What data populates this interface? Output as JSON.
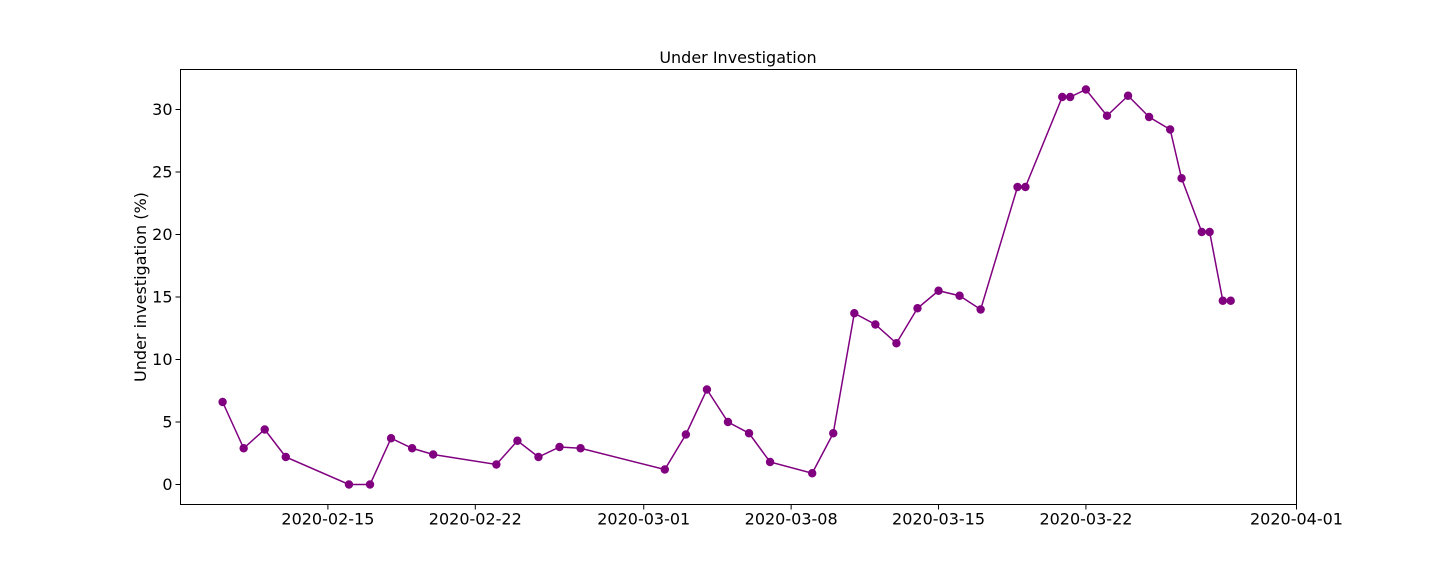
{
  "chart_data": {
    "type": "line",
    "title": "Under Investigation",
    "xlabel": "",
    "ylabel": "Under investigation (%)",
    "xlim": [
      "2020-02-08",
      "2020-04-01"
    ],
    "ylim": [
      -1.6,
      33.2
    ],
    "x_ticks": [
      "2020-02-15",
      "2020-02-22",
      "2020-03-01",
      "2020-03-08",
      "2020-03-15",
      "2020-03-22",
      "2020-04-01"
    ],
    "y_ticks": [
      0,
      5,
      10,
      15,
      20,
      25,
      30
    ],
    "grid": false,
    "legend": "none",
    "series": [
      {
        "color": "#800080",
        "marker": "circle",
        "x": [
          "2020-02-10",
          "2020-02-11",
          "2020-02-12",
          "2020-02-13",
          "2020-02-16",
          "2020-02-17",
          "2020-02-18",
          "2020-02-19",
          "2020-02-20",
          "2020-02-23",
          "2020-02-24",
          "2020-02-25",
          "2020-02-26",
          "2020-02-27",
          "2020-03-02",
          "2020-03-03",
          "2020-03-04",
          "2020-03-05",
          "2020-03-06",
          "2020-03-07",
          "2020-03-09",
          "2020-03-10",
          "2020-03-11",
          "2020-03-12",
          "2020-03-13",
          "2020-03-14",
          "2020-03-15",
          "2020-03-16",
          "2020-03-17",
          "2020-03-18 18:00",
          "2020-03-19 03:00",
          "2020-03-20 21:00",
          "2020-03-21 06:00",
          "2020-03-22",
          "2020-03-23",
          "2020-03-24",
          "2020-03-25",
          "2020-03-26",
          "2020-03-26 13:00",
          "2020-03-27 12:00",
          "2020-03-27 21:00",
          "2020-03-28 12:00",
          "2020-03-28 21:00"
        ],
        "y": [
          6.6,
          2.9,
          4.4,
          2.2,
          0.0,
          0.0,
          3.7,
          2.9,
          2.4,
          1.6,
          3.5,
          2.2,
          3.0,
          2.9,
          1.2,
          4.0,
          7.6,
          5.0,
          4.1,
          1.8,
          0.9,
          4.1,
          13.7,
          12.8,
          11.3,
          14.1,
          15.5,
          15.1,
          14.0,
          23.8,
          23.8,
          31.0,
          31.0,
          31.6,
          29.5,
          31.1,
          29.4,
          28.4,
          24.5,
          20.2,
          20.2,
          14.7,
          14.7
        ]
      }
    ]
  }
}
